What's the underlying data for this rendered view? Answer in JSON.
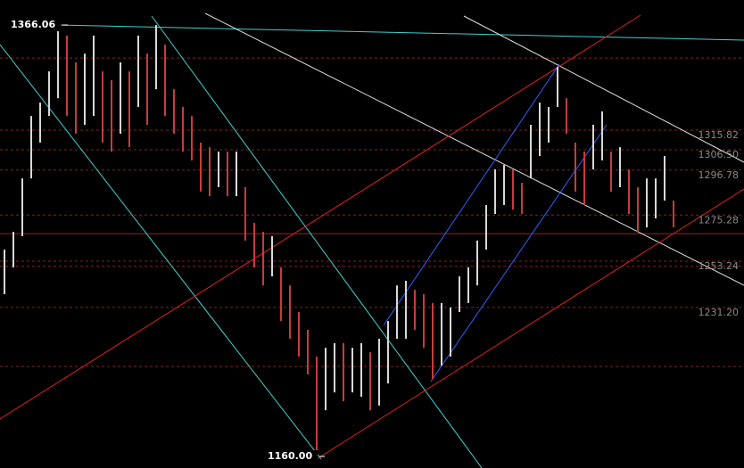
{
  "chart_data": {
    "type": "ohlc",
    "high": [
      1258.8,
      1267.3,
      1292.8,
      1322.6,
      1329.0,
      1343.9,
      1365.2,
      1361.0,
      1348.2,
      1352.4,
      1361.0,
      1343.9,
      1339.7,
      1348.2,
      1343.9,
      1361.0,
      1352.4,
      1366.06,
      1356.7,
      1335.4,
      1326.9,
      1322.6,
      1309.9,
      1307.7,
      1305.6,
      1305.6,
      1305.6,
      1288.6,
      1271.6,
      1267.3,
      1265.2,
      1250.3,
      1241.7,
      1229.0,
      1220.5,
      1207.7,
      1211.9,
      1214.1,
      1214.1,
      1211.9,
      1214.1,
      1209.8,
      1216.2,
      1224.7,
      1241.7,
      1243.9,
      1239.6,
      1237.5,
      1233.3,
      1233.3,
      1231.1,
      1246.0,
      1250.3,
      1263.1,
      1280.1,
      1297.1,
      1299.2,
      1297.1,
      1290.7,
      1318.4,
      1329.0,
      1326.9,
      1346.1,
      1331.1,
      1309.9,
      1305.6,
      1318.4,
      1324.8,
      1305.6,
      1307.7,
      1297.1,
      1288.6,
      1292.8,
      1292.8,
      1303.5,
      1282.2
    ],
    "low": [
      1237.5,
      1250.3,
      1265.2,
      1292.8,
      1309.9,
      1322.6,
      1331.1,
      1322.6,
      1314.1,
      1318.4,
      1322.6,
      1309.9,
      1305.6,
      1314.1,
      1307.7,
      1326.9,
      1318.4,
      1335.4,
      1322.6,
      1314.1,
      1305.6,
      1301.4,
      1286.5,
      1284.3,
      1288.6,
      1284.3,
      1284.3,
      1263.1,
      1250.3,
      1241.7,
      1246.0,
      1224.7,
      1216.2,
      1207.7,
      1199.2,
      1160.0,
      1182.1,
      1190.6,
      1186.4,
      1190.6,
      1188.5,
      1182.1,
      1184.3,
      1194.9,
      1216.2,
      1216.2,
      1220.5,
      1211.9,
      1197.0,
      1203.4,
      1207.7,
      1229.0,
      1233.3,
      1241.7,
      1258.8,
      1275.8,
      1280.1,
      1277.9,
      1275.8,
      1292.8,
      1303.5,
      1309.9,
      1326.9,
      1314.1,
      1286.5,
      1280.1,
      1297.1,
      1301.4,
      1286.5,
      1288.6,
      1275.8,
      1267.3,
      1269.4,
      1273.7,
      1282.2,
      1269.4
    ],
    "up_color": "#d8d8d8",
    "down_color": "#c83c3c",
    "ylim": [
      1154.5,
      1378.0
    ],
    "levels": [
      {
        "value": 1315.82,
        "label": "1315.82"
      },
      {
        "value": 1306.5,
        "label": "1306.50"
      },
      {
        "value": 1296.78,
        "label": "1296.78"
      },
      {
        "value": 1275.28,
        "label": "1275.28"
      },
      {
        "value": 1253.24,
        "label": "1253.24"
      },
      {
        "value": 1231.2,
        "label": "1231.20"
      }
    ],
    "guide_lines": [
      1350.3,
      1250.8,
      1203.0
    ],
    "support_line": 1266.4,
    "max_marker": {
      "value": 1366.06,
      "label": "1366.06"
    },
    "min_marker": {
      "value": 1160.0,
      "label": "1160.00"
    }
  }
}
